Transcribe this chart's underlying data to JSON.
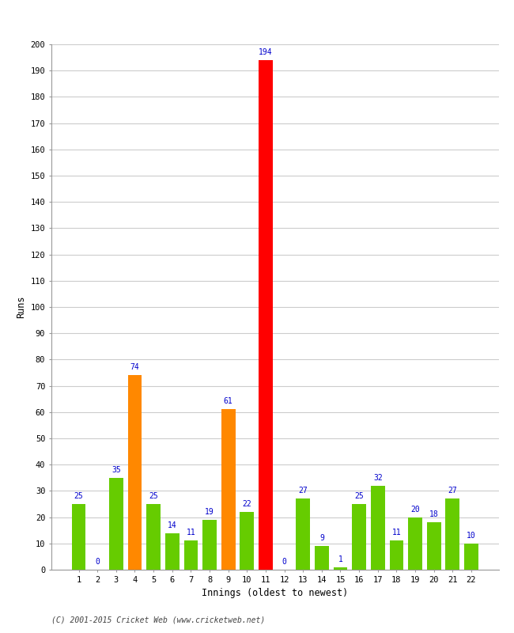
{
  "xlabel": "Innings (oldest to newest)",
  "ylabel": "Runs",
  "categories": [
    1,
    2,
    3,
    4,
    5,
    6,
    7,
    8,
    9,
    10,
    11,
    12,
    13,
    14,
    15,
    16,
    17,
    18,
    19,
    20,
    21,
    22
  ],
  "values": [
    25,
    0,
    35,
    74,
    25,
    14,
    11,
    19,
    61,
    22,
    194,
    0,
    27,
    9,
    1,
    25,
    32,
    11,
    20,
    18,
    27,
    10
  ],
  "bar_colors": [
    "#66cc00",
    "#66cc00",
    "#66cc00",
    "#ff8800",
    "#66cc00",
    "#66cc00",
    "#66cc00",
    "#66cc00",
    "#ff8800",
    "#66cc00",
    "#ff0000",
    "#66cc00",
    "#66cc00",
    "#66cc00",
    "#66cc00",
    "#66cc00",
    "#66cc00",
    "#66cc00",
    "#66cc00",
    "#66cc00",
    "#66cc00",
    "#66cc00"
  ],
  "label_color": "#0000cc",
  "ylim": [
    0,
    200
  ],
  "yticks": [
    0,
    10,
    20,
    30,
    40,
    50,
    60,
    70,
    80,
    90,
    100,
    110,
    120,
    130,
    140,
    150,
    160,
    170,
    180,
    190,
    200
  ],
  "background_color": "#ffffff",
  "grid_color": "#cccccc",
  "footer": "(C) 2001-2015 Cricket Web (www.cricketweb.net)"
}
